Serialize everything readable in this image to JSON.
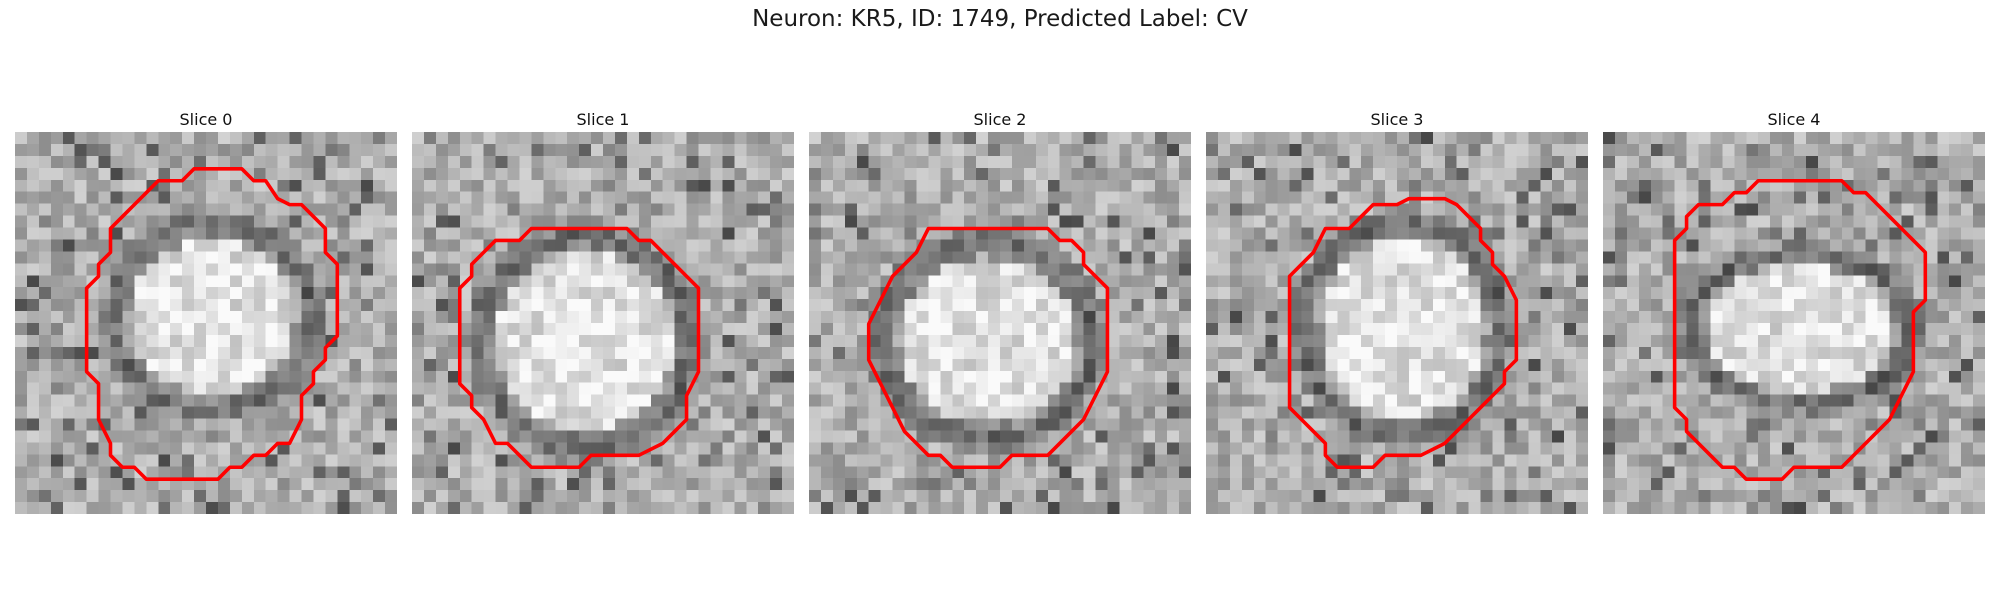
{
  "figure": {
    "title": "Neuron: KR5, ID: 1749, Predicted Label: CV",
    "contour_color": "#ff0000"
  },
  "slices": [
    {
      "title": "Slice 0"
    },
    {
      "title": "Slice 1"
    },
    {
      "title": "Slice 2"
    },
    {
      "title": "Slice 3"
    },
    {
      "title": "Slice 4"
    }
  ]
}
